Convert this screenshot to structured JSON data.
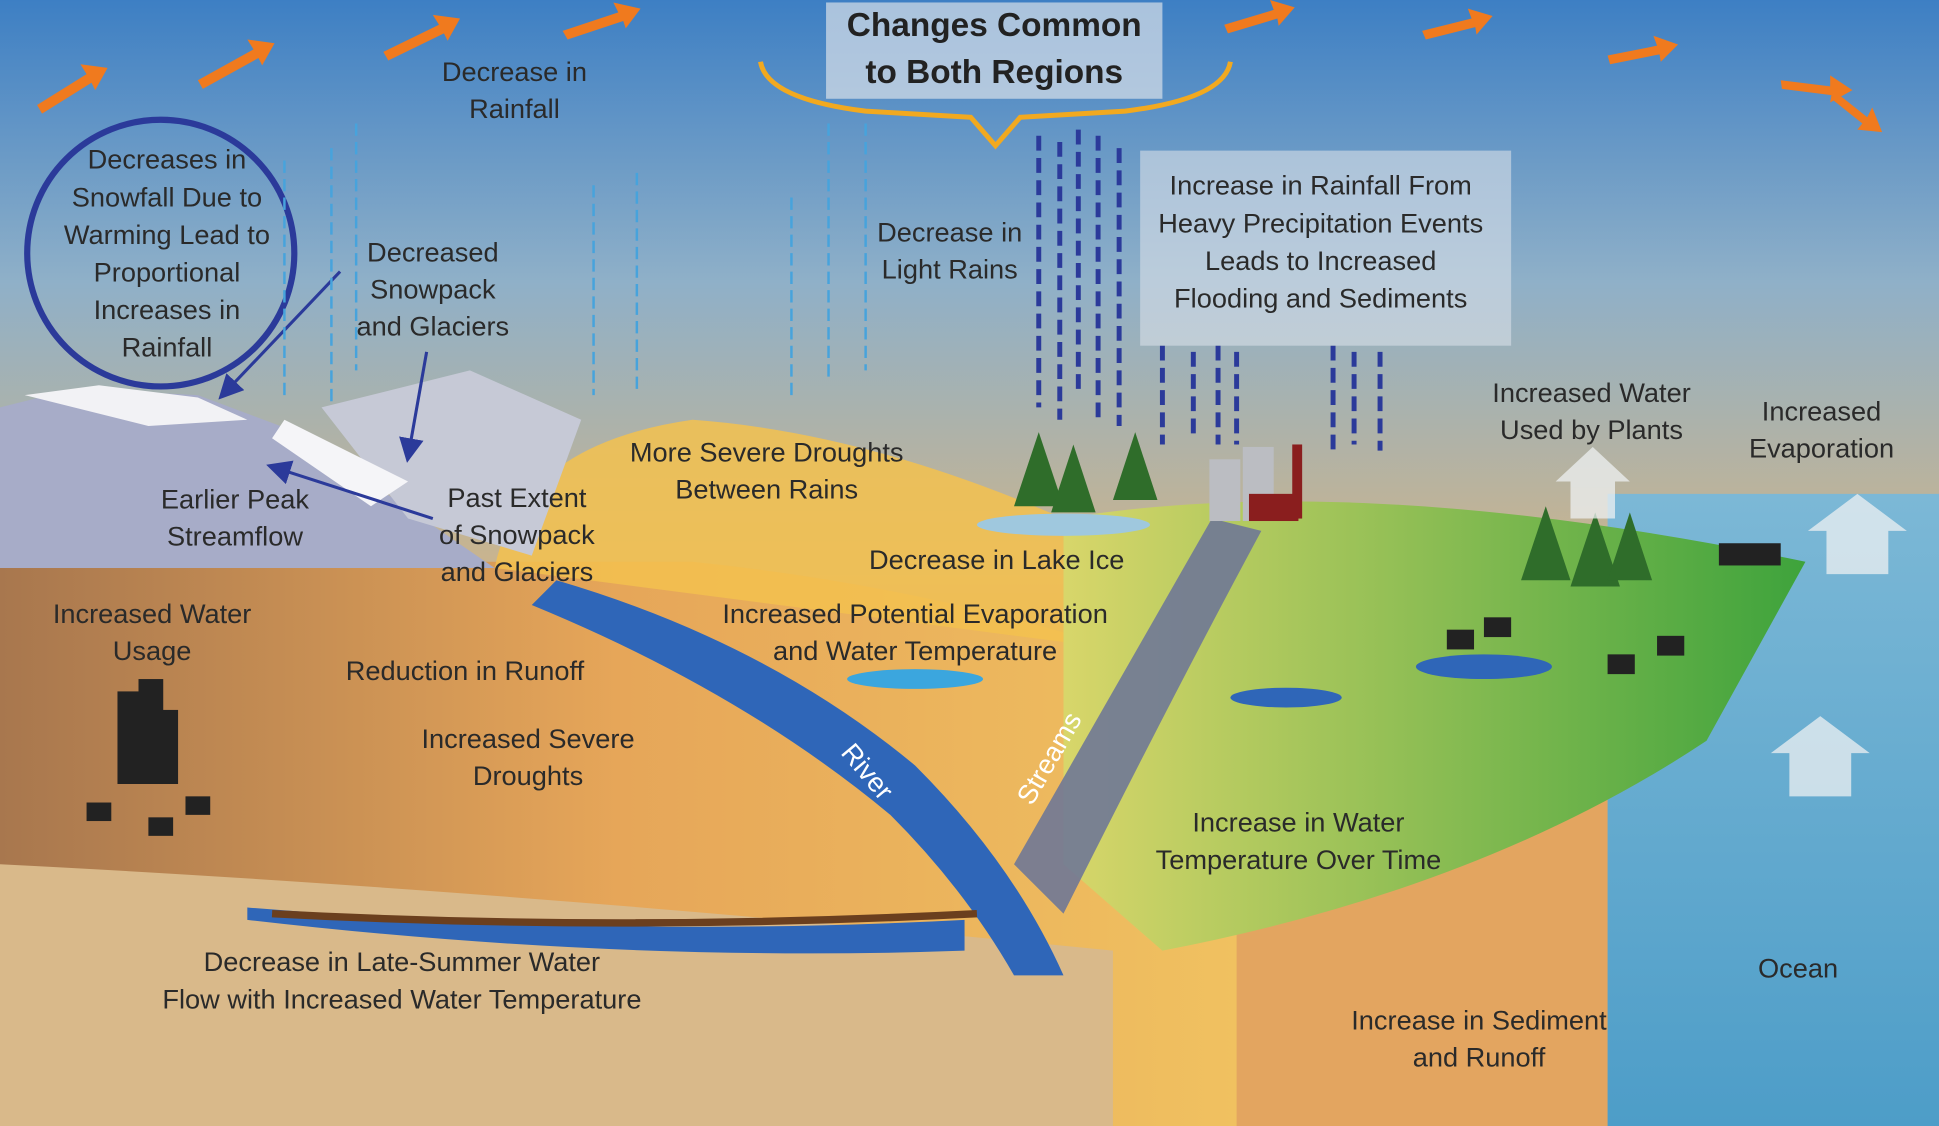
{
  "title": {
    "lines": [
      "Changes Common",
      "to Both Regions"
    ]
  },
  "labels": [
    {
      "lines": [
        "Decrease in",
        "Rainfall"
      ]
    },
    {
      "lines": [
        "Decreases in",
        "Snowfall Due to",
        "Warming  Lead to",
        "Proportional",
        "Increases in",
        "Rainfall"
      ]
    },
    {
      "lines": [
        "Decreased",
        "Snowpack",
        "and Glaciers"
      ]
    },
    {
      "lines": [
        "Decrease in",
        "Light Rains"
      ]
    },
    {
      "lines": [
        "Increase in Rainfall From",
        "Heavy Precipitation Events",
        "Leads to Increased",
        "Flooding and Sediments"
      ]
    },
    {
      "lines": [
        "Increased Water",
        "Used by Plants"
      ]
    },
    {
      "lines": [
        "Increased",
        "Evaporation"
      ]
    },
    {
      "lines": [
        "More Severe Droughts",
        "Between Rains"
      ]
    },
    {
      "lines": [
        "Earlier Peak",
        "Streamflow"
      ]
    },
    {
      "lines": [
        "Past Extent",
        "of Snowpack",
        "and Glaciers"
      ]
    },
    {
      "lines": [
        "Decrease in Lake Ice"
      ]
    },
    {
      "lines": [
        "Increased Water",
        "Usage"
      ]
    },
    {
      "lines": [
        "Increased Potential Evaporation",
        "and Water Temperature"
      ]
    },
    {
      "lines": [
        "Reduction in Runoff"
      ]
    },
    {
      "lines": [
        "Increased Severe",
        "Droughts"
      ]
    },
    {
      "lines": [
        "River"
      ]
    },
    {
      "lines": [
        "Streams"
      ]
    },
    {
      "lines": [
        "Increase in Water",
        "Temperature Over Time"
      ]
    },
    {
      "lines": [
        "Ocean"
      ]
    },
    {
      "lines": [
        "Decrease in Late-Summer Water",
        "Flow with Increased Water Temperature"
      ]
    },
    {
      "lines": [
        "Increase in Sediment",
        "and Runoff"
      ]
    }
  ]
}
